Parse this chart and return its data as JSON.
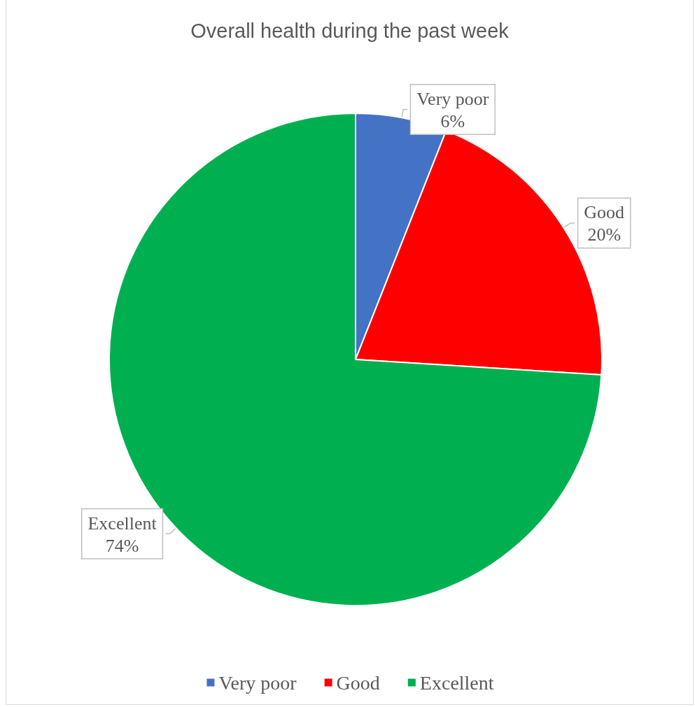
{
  "chart_data": {
    "type": "pie",
    "title": "Overall health during the past week",
    "categories": [
      "Very poor",
      "Good",
      "Excellent"
    ],
    "values": [
      6,
      20,
      74
    ],
    "colors": [
      "#4472c4",
      "#ff0000",
      "#00b050"
    ],
    "value_labels": [
      "6%",
      "20%",
      "74%"
    ],
    "legend": "bottom"
  }
}
